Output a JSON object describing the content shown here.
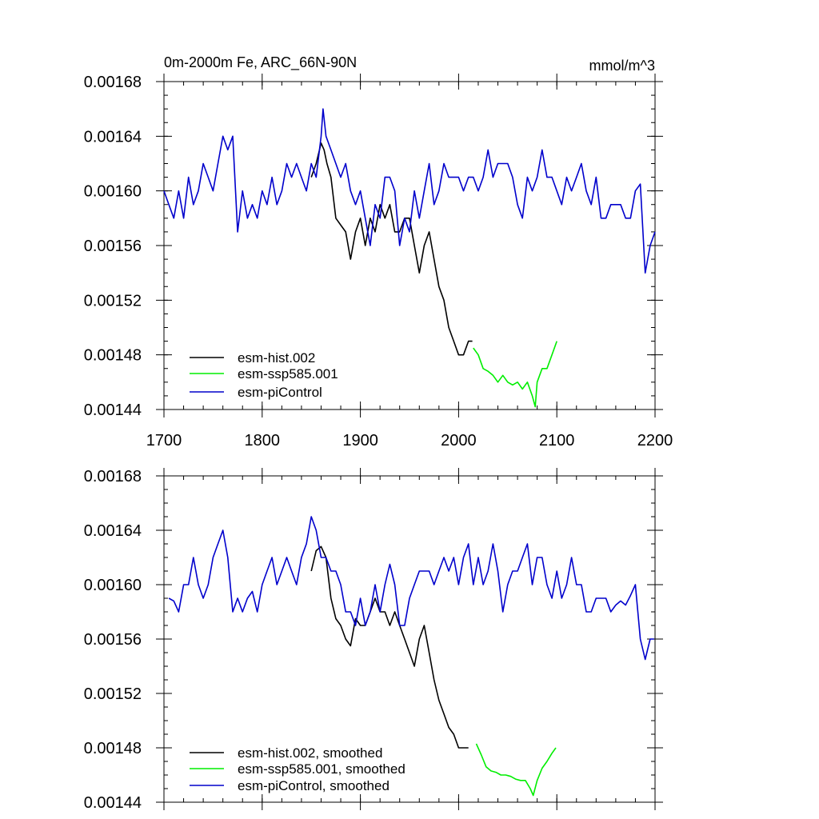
{
  "chart_data": [
    {
      "type": "line",
      "title": "0m-2000m Fe, ARC_66N-90N",
      "units": "mmol/m^3",
      "xlim": [
        1700,
        2200
      ],
      "ylim": [
        0.00144,
        0.00168
      ],
      "xticks": [
        1700,
        1800,
        1900,
        2000,
        2100,
        2200
      ],
      "xtick_labels": [
        "1700",
        "1800",
        "1900",
        "2000",
        "2100",
        "2200"
      ],
      "yticks": [
        0.00144,
        0.00148,
        0.00152,
        0.00156,
        0.0016,
        0.00164,
        0.00168
      ],
      "ytick_labels": [
        "0.00144",
        "0.00148",
        "0.00152",
        "0.00156",
        "0.00160",
        "0.00164",
        "0.00168"
      ],
      "legend_position": "bottom-left",
      "grid": false,
      "series": [
        {
          "name": "esm-hist.002",
          "color": "#000000",
          "x": [
            1850,
            1855,
            1860,
            1863,
            1866,
            1870,
            1875,
            1880,
            1885,
            1890,
            1895,
            1900,
            1905,
            1910,
            1915,
            1920,
            1925,
            1930,
            1935,
            1940,
            1945,
            1950,
            1955,
            1960,
            1965,
            1970,
            1975,
            1980,
            1985,
            1990,
            1995,
            2000,
            2005,
            2010,
            2014
          ],
          "y": [
            0.00161,
            0.00162,
            0.001635,
            0.00163,
            0.00162,
            0.00161,
            0.00158,
            0.001575,
            0.00157,
            0.00155,
            0.00157,
            0.00158,
            0.00156,
            0.00158,
            0.00157,
            0.00159,
            0.00158,
            0.00159,
            0.00157,
            0.00157,
            0.00158,
            0.00158,
            0.00156,
            0.00154,
            0.00156,
            0.00157,
            0.00155,
            0.00153,
            0.00152,
            0.0015,
            0.00149,
            0.00148,
            0.00148,
            0.00149,
            0.00149
          ]
        },
        {
          "name": "esm-ssp585.001",
          "color": "#00ee00",
          "x": [
            2015,
            2020,
            2025,
            2030,
            2035,
            2040,
            2045,
            2050,
            2055,
            2060,
            2065,
            2070,
            2075,
            2078,
            2080,
            2085,
            2090,
            2095,
            2100
          ],
          "y": [
            0.001485,
            0.00148,
            0.00147,
            0.001468,
            0.001465,
            0.00146,
            0.001465,
            0.00146,
            0.001458,
            0.00146,
            0.001455,
            0.00146,
            0.00145,
            0.001442,
            0.00146,
            0.00147,
            0.00147,
            0.00148,
            0.00149
          ]
        },
        {
          "name": "esm-piControl",
          "color": "#0000cc",
          "x": [
            1700,
            1705,
            1710,
            1715,
            1720,
            1725,
            1730,
            1735,
            1740,
            1745,
            1750,
            1755,
            1760,
            1765,
            1770,
            1775,
            1780,
            1785,
            1790,
            1795,
            1800,
            1805,
            1810,
            1815,
            1820,
            1825,
            1830,
            1835,
            1840,
            1845,
            1850,
            1855,
            1860,
            1862,
            1865,
            1870,
            1875,
            1880,
            1885,
            1890,
            1895,
            1900,
            1905,
            1910,
            1915,
            1920,
            1925,
            1930,
            1935,
            1940,
            1945,
            1950,
            1955,
            1960,
            1965,
            1970,
            1975,
            1980,
            1985,
            1990,
            1995,
            2000,
            2005,
            2010,
            2015,
            2020,
            2025,
            2030,
            2035,
            2040,
            2045,
            2050,
            2055,
            2060,
            2065,
            2070,
            2075,
            2080,
            2085,
            2090,
            2095,
            2100,
            2105,
            2110,
            2115,
            2120,
            2125,
            2130,
            2135,
            2140,
            2145,
            2150,
            2155,
            2160,
            2165,
            2170,
            2175,
            2180,
            2185,
            2190,
            2195,
            2200
          ],
          "y": [
            0.0016,
            0.00159,
            0.00158,
            0.0016,
            0.00158,
            0.00161,
            0.00159,
            0.0016,
            0.00162,
            0.00161,
            0.0016,
            0.00162,
            0.00164,
            0.00163,
            0.00164,
            0.00157,
            0.0016,
            0.00158,
            0.00159,
            0.00158,
            0.0016,
            0.00159,
            0.00161,
            0.00159,
            0.0016,
            0.00162,
            0.00161,
            0.00162,
            0.00161,
            0.0016,
            0.00162,
            0.00161,
            0.00164,
            0.00166,
            0.00164,
            0.00163,
            0.00162,
            0.00161,
            0.00162,
            0.0016,
            0.00159,
            0.0016,
            0.00158,
            0.00156,
            0.00159,
            0.00158,
            0.00161,
            0.00161,
            0.0016,
            0.00156,
            0.00158,
            0.00157,
            0.0016,
            0.00158,
            0.0016,
            0.00162,
            0.00159,
            0.0016,
            0.00162,
            0.00161,
            0.00161,
            0.00161,
            0.0016,
            0.00161,
            0.00161,
            0.0016,
            0.00161,
            0.00163,
            0.00161,
            0.00162,
            0.00162,
            0.00162,
            0.00161,
            0.00159,
            0.00158,
            0.00161,
            0.0016,
            0.00161,
            0.00163,
            0.00161,
            0.00161,
            0.0016,
            0.00159,
            0.00161,
            0.0016,
            0.00161,
            0.00162,
            0.0016,
            0.00159,
            0.00161,
            0.00158,
            0.00158,
            0.00159,
            0.00159,
            0.00159,
            0.00158,
            0.00158,
            0.0016,
            0.001605,
            0.00154,
            0.00156,
            0.00157
          ]
        }
      ]
    },
    {
      "type": "line",
      "xlim": [
        1700,
        2200
      ],
      "ylim": [
        0.00144,
        0.00168
      ],
      "xticks": [
        1700,
        1800,
        1900,
        2000,
        2100,
        2200
      ],
      "yticks": [
        0.00144,
        0.00148,
        0.00152,
        0.00156,
        0.0016,
        0.00164,
        0.00168
      ],
      "ytick_labels": [
        "0.00144",
        "0.00148",
        "0.00152",
        "0.00156",
        "0.00160",
        "0.00164",
        "0.00168"
      ],
      "legend_position": "bottom-left",
      "grid": false,
      "series": [
        {
          "name": "esm-hist.002, smoothed",
          "color": "#000000",
          "x": [
            1850,
            1855,
            1860,
            1865,
            1870,
            1875,
            1880,
            1885,
            1890,
            1895,
            1900,
            1905,
            1910,
            1915,
            1920,
            1925,
            1930,
            1935,
            1940,
            1945,
            1950,
            1955,
            1960,
            1965,
            1970,
            1975,
            1980,
            1985,
            1990,
            1995,
            2000,
            2005,
            2010
          ],
          "y": [
            0.00161,
            0.001625,
            0.001628,
            0.00162,
            0.00159,
            0.001575,
            0.00157,
            0.00156,
            0.001555,
            0.001575,
            0.00157,
            0.00157,
            0.00158,
            0.00159,
            0.00158,
            0.00158,
            0.00157,
            0.00158,
            0.00157,
            0.00156,
            0.00155,
            0.00154,
            0.00156,
            0.00157,
            0.00155,
            0.00153,
            0.001515,
            0.001505,
            0.001495,
            0.00149,
            0.00148,
            0.00148,
            0.00148
          ]
        },
        {
          "name": "esm-ssp585.001, smoothed",
          "color": "#00ee00",
          "x": [
            2018,
            2023,
            2028,
            2033,
            2038,
            2043,
            2048,
            2053,
            2058,
            2063,
            2068,
            2073,
            2076,
            2080,
            2085,
            2090,
            2095,
            2099
          ],
          "y": [
            0.001483,
            0.001475,
            0.001466,
            0.001463,
            0.001462,
            0.00146,
            0.00146,
            0.001459,
            0.001457,
            0.001456,
            0.001456,
            0.00145,
            0.001445,
            0.001456,
            0.001465,
            0.00147,
            0.001476,
            0.00148
          ]
        },
        {
          "name": "esm-piControl, smoothed",
          "color": "#0000cc",
          "x": [
            1705,
            1710,
            1715,
            1720,
            1725,
            1730,
            1735,
            1740,
            1745,
            1750,
            1755,
            1760,
            1765,
            1770,
            1775,
            1780,
            1785,
            1790,
            1795,
            1800,
            1805,
            1810,
            1815,
            1820,
            1825,
            1830,
            1835,
            1840,
            1845,
            1850,
            1855,
            1860,
            1865,
            1870,
            1875,
            1880,
            1885,
            1890,
            1895,
            1900,
            1905,
            1910,
            1915,
            1920,
            1925,
            1930,
            1935,
            1940,
            1945,
            1950,
            1955,
            1960,
            1965,
            1970,
            1975,
            1980,
            1985,
            1990,
            1995,
            2000,
            2005,
            2010,
            2015,
            2020,
            2025,
            2030,
            2035,
            2040,
            2045,
            2050,
            2055,
            2060,
            2065,
            2070,
            2075,
            2080,
            2085,
            2090,
            2095,
            2100,
            2105,
            2110,
            2115,
            2120,
            2125,
            2130,
            2135,
            2140,
            2145,
            2150,
            2155,
            2160,
            2165,
            2170,
            2175,
            2180,
            2185,
            2190,
            2195,
            2199
          ],
          "y": [
            0.00159,
            0.001588,
            0.00158,
            0.0016,
            0.0016,
            0.00162,
            0.0016,
            0.00159,
            0.0016,
            0.00162,
            0.00163,
            0.00164,
            0.00162,
            0.00158,
            0.00159,
            0.00158,
            0.00159,
            0.001595,
            0.00158,
            0.0016,
            0.00161,
            0.00162,
            0.0016,
            0.00161,
            0.00162,
            0.00161,
            0.0016,
            0.00162,
            0.00163,
            0.00165,
            0.00164,
            0.00162,
            0.00162,
            0.00161,
            0.00161,
            0.0016,
            0.00158,
            0.00158,
            0.00157,
            0.00159,
            0.00157,
            0.00158,
            0.0016,
            0.00158,
            0.0016,
            0.001615,
            0.0016,
            0.00157,
            0.00157,
            0.00159,
            0.0016,
            0.00161,
            0.00161,
            0.00161,
            0.0016,
            0.00161,
            0.00162,
            0.00161,
            0.00162,
            0.0016,
            0.00162,
            0.00163,
            0.0016,
            0.00162,
            0.0016,
            0.00161,
            0.00163,
            0.00161,
            0.00158,
            0.0016,
            0.00161,
            0.00161,
            0.00162,
            0.00163,
            0.0016,
            0.00162,
            0.00162,
            0.0016,
            0.00159,
            0.00161,
            0.00159,
            0.0016,
            0.00162,
            0.0016,
            0.0016,
            0.00158,
            0.00158,
            0.00159,
            0.00159,
            0.00159,
            0.00158,
            0.001585,
            0.001588,
            0.001585,
            0.001592,
            0.0016,
            0.00156,
            0.001545,
            0.00156,
            0.00156
          ]
        }
      ]
    }
  ]
}
